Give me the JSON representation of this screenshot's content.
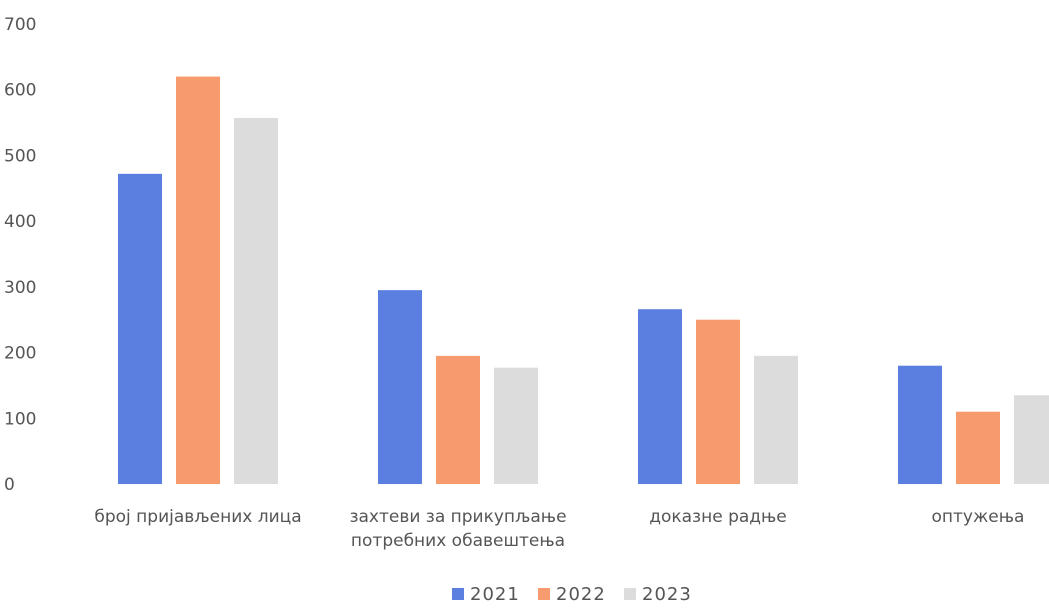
{
  "chart_data": {
    "type": "bar",
    "categories": [
      [
        "број пријављених лица"
      ],
      [
        "захтеви за прикупљање",
        "потребних обавештења"
      ],
      [
        "доказне радње"
      ],
      [
        "оптужења"
      ]
    ],
    "series": [
      {
        "name": "2021",
        "color": "#5B7FE0",
        "values": [
          472,
          295,
          266,
          180
        ]
      },
      {
        "name": "2022",
        "color": "#F79A6E",
        "values": [
          620,
          195,
          250,
          110
        ]
      },
      {
        "name": "2023",
        "color": "#DCDCDC",
        "values": [
          557,
          177,
          195,
          135
        ]
      }
    ],
    "y_ticks": [
      "0",
      "100",
      "200",
      "300",
      "400",
      "500",
      "600",
      "700"
    ],
    "ylim": [
      0,
      700
    ],
    "grid": false,
    "legend_position": "bottom"
  }
}
